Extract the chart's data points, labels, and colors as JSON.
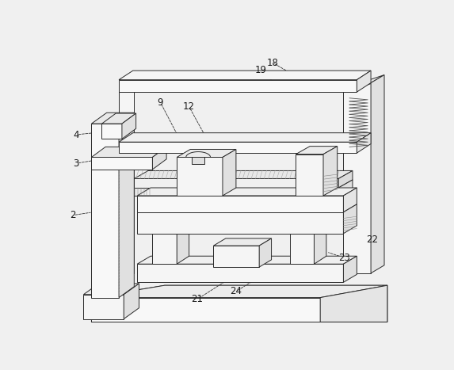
{
  "bg_color": "#f0f0f0",
  "line_color": "#2a2a2a",
  "face_white": "#ffffff",
  "face_light": "#f0f0f0",
  "face_mid": "#e0e0e0",
  "face_dark": "#cccccc",
  "lw": 0.7
}
